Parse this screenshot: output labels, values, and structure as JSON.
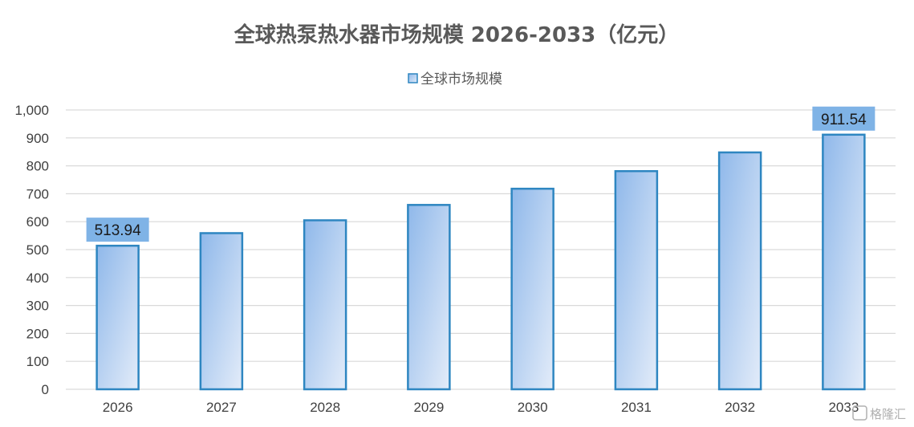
{
  "chart_data": {
    "type": "bar",
    "title": "全球热泵热水器市场规模 2026-2033（亿元）",
    "xlabel": "",
    "ylabel": "",
    "categories": [
      "2026",
      "2027",
      "2028",
      "2029",
      "2030",
      "2031",
      "2032",
      "2033"
    ],
    "series": [
      {
        "name": "全球市场规模",
        "values": [
          513.94,
          559,
          605,
          660,
          718,
          781,
          848,
          911.54
        ],
        "color": "#2E86C1"
      }
    ],
    "ylim": [
      0,
      1000
    ],
    "yticks": [
      0,
      100,
      200,
      300,
      400,
      500,
      600,
      700,
      800,
      900,
      1000
    ],
    "ytick_labels": [
      "0",
      "100",
      "200",
      "300",
      "400",
      "500",
      "600",
      "700",
      "800",
      "900",
      "1,000"
    ],
    "data_labels": [
      {
        "category": "2026",
        "text": "513.94"
      },
      {
        "category": "2033",
        "text": "911.54"
      }
    ],
    "grid": true,
    "legend_position": "top-center",
    "colors": {
      "bar_stroke": "#2E86C1",
      "bar_gradient_start": "#8FB8EA",
      "bar_gradient_end": "#E3ECF9",
      "label_box": "#7FB3E6",
      "gridline": "#D9D9D9"
    }
  },
  "watermark": {
    "text": "格隆汇",
    "icon": "glh-logo-icon"
  }
}
